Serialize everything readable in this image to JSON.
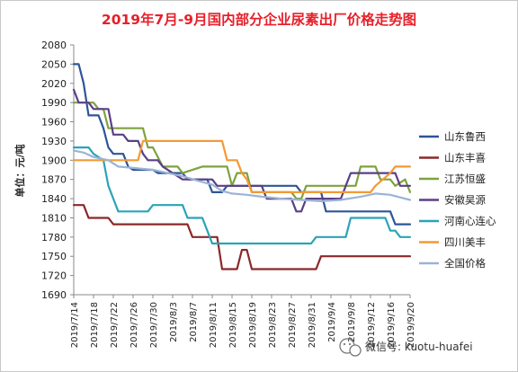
{
  "chart_data": {
    "type": "line",
    "title": "2019年7月-9月国内部分企业尿素出厂价格走势图",
    "title_color": "#e8202a",
    "ylabel": "单位：元/吨",
    "xlabel": "",
    "ylim": [
      1690,
      2080
    ],
    "yticks": [
      1690,
      1720,
      1750,
      1780,
      1810,
      1840,
      1870,
      1900,
      1930,
      1960,
      1990,
      2020,
      2050,
      2080
    ],
    "xlim": [
      "2019-07-14",
      "2019-09-20"
    ],
    "xtick_labels": [
      "2019/7/14",
      "2019/7/18",
      "2019/7/22",
      "2019/7/26",
      "2019/7/30",
      "2019/8/3",
      "2019/8/7",
      "2019/8/11",
      "2019/8/15",
      "2019/8/19",
      "2019/8/23",
      "2019/8/27",
      "2019/8/31",
      "2019/9/4",
      "2019/9/8",
      "2019/9/12",
      "2019/9/16",
      "2019/9/20"
    ],
    "grid": false,
    "legend_position": "right",
    "series": [
      {
        "name": "山东鲁西",
        "color": "#2e5597",
        "points": [
          [
            "2019-07-14",
            2050
          ],
          [
            "2019-07-15",
            2050
          ],
          [
            "2019-07-16",
            2020
          ],
          [
            "2019-07-17",
            1970
          ],
          [
            "2019-07-19",
            1970
          ],
          [
            "2019-07-20",
            1950
          ],
          [
            "2019-07-21",
            1920
          ],
          [
            "2019-07-22",
            1910
          ],
          [
            "2019-07-24",
            1910
          ],
          [
            "2019-07-25",
            1890
          ],
          [
            "2019-07-26",
            1885
          ],
          [
            "2019-07-30",
            1885
          ],
          [
            "2019-07-31",
            1880
          ],
          [
            "2019-08-05",
            1880
          ],
          [
            "2019-08-06",
            1870
          ],
          [
            "2019-08-10",
            1870
          ],
          [
            "2019-08-11",
            1850
          ],
          [
            "2019-08-13",
            1850
          ],
          [
            "2019-08-14",
            1860
          ],
          [
            "2019-08-28",
            1860
          ],
          [
            "2019-08-29",
            1850
          ],
          [
            "2019-09-02",
            1850
          ],
          [
            "2019-09-03",
            1820
          ],
          [
            "2019-09-16",
            1820
          ],
          [
            "2019-09-17",
            1800
          ],
          [
            "2019-09-20",
            1800
          ]
        ]
      },
      {
        "name": "山东丰喜",
        "color": "#8b2828",
        "points": [
          [
            "2019-07-14",
            1830
          ],
          [
            "2019-07-16",
            1830
          ],
          [
            "2019-07-17",
            1810
          ],
          [
            "2019-07-21",
            1810
          ],
          [
            "2019-07-22",
            1800
          ],
          [
            "2019-08-06",
            1800
          ],
          [
            "2019-08-07",
            1780
          ],
          [
            "2019-08-12",
            1780
          ],
          [
            "2019-08-13",
            1730
          ],
          [
            "2019-08-16",
            1730
          ],
          [
            "2019-08-17",
            1760
          ],
          [
            "2019-08-18",
            1760
          ],
          [
            "2019-08-19",
            1730
          ],
          [
            "2019-09-01",
            1730
          ],
          [
            "2019-09-02",
            1750
          ],
          [
            "2019-09-20",
            1750
          ]
        ]
      },
      {
        "name": "江苏恒盛",
        "color": "#7ea23e",
        "points": [
          [
            "2019-07-14",
            1990
          ],
          [
            "2019-07-18",
            1990
          ],
          [
            "2019-07-19",
            1980
          ],
          [
            "2019-07-20",
            1980
          ],
          [
            "2019-07-21",
            1950
          ],
          [
            "2019-07-28",
            1950
          ],
          [
            "2019-07-29",
            1920
          ],
          [
            "2019-07-30",
            1920
          ],
          [
            "2019-08-01",
            1890
          ],
          [
            "2019-08-04",
            1890
          ],
          [
            "2019-08-05",
            1880
          ],
          [
            "2019-08-09",
            1890
          ],
          [
            "2019-08-14",
            1890
          ],
          [
            "2019-08-15",
            1860
          ],
          [
            "2019-08-16",
            1880
          ],
          [
            "2019-08-18",
            1880
          ],
          [
            "2019-08-19",
            1850
          ],
          [
            "2019-08-27",
            1850
          ],
          [
            "2019-08-28",
            1840
          ],
          [
            "2019-08-29",
            1840
          ],
          [
            "2019-08-30",
            1860
          ],
          [
            "2019-09-09",
            1860
          ],
          [
            "2019-09-10",
            1890
          ],
          [
            "2019-09-13",
            1890
          ],
          [
            "2019-09-14",
            1870
          ],
          [
            "2019-09-16",
            1870
          ],
          [
            "2019-09-17",
            1860
          ],
          [
            "2019-09-19",
            1870
          ],
          [
            "2019-09-20",
            1850
          ]
        ]
      },
      {
        "name": "安徽昊源",
        "color": "#5b3f86",
        "points": [
          [
            "2019-07-14",
            2010
          ],
          [
            "2019-07-15",
            1990
          ],
          [
            "2019-07-17",
            1990
          ],
          [
            "2019-07-18",
            1980
          ],
          [
            "2019-07-21",
            1980
          ],
          [
            "2019-07-22",
            1940
          ],
          [
            "2019-07-24",
            1940
          ],
          [
            "2019-07-25",
            1930
          ],
          [
            "2019-07-27",
            1930
          ],
          [
            "2019-07-28",
            1910
          ],
          [
            "2019-07-29",
            1900
          ],
          [
            "2019-07-31",
            1900
          ],
          [
            "2019-08-01",
            1890
          ],
          [
            "2019-08-03",
            1880
          ],
          [
            "2019-08-05",
            1870
          ],
          [
            "2019-08-11",
            1870
          ],
          [
            "2019-08-12",
            1860
          ],
          [
            "2019-08-21",
            1860
          ],
          [
            "2019-08-22",
            1840
          ],
          [
            "2019-08-27",
            1840
          ],
          [
            "2019-08-28",
            1820
          ],
          [
            "2019-08-29",
            1820
          ],
          [
            "2019-08-30",
            1840
          ],
          [
            "2019-09-06",
            1840
          ],
          [
            "2019-09-07",
            1860
          ],
          [
            "2019-09-08",
            1880
          ],
          [
            "2019-09-17",
            1880
          ],
          [
            "2019-09-18",
            1860
          ],
          [
            "2019-09-20",
            1860
          ]
        ]
      },
      {
        "name": "河南心连心",
        "color": "#2ba3b8",
        "points": [
          [
            "2019-07-14",
            1920
          ],
          [
            "2019-07-17",
            1920
          ],
          [
            "2019-07-18",
            1910
          ],
          [
            "2019-07-20",
            1900
          ],
          [
            "2019-07-21",
            1860
          ],
          [
            "2019-07-22",
            1840
          ],
          [
            "2019-07-23",
            1820
          ],
          [
            "2019-07-29",
            1820
          ],
          [
            "2019-07-30",
            1830
          ],
          [
            "2019-08-05",
            1830
          ],
          [
            "2019-08-06",
            1810
          ],
          [
            "2019-08-09",
            1810
          ],
          [
            "2019-08-10",
            1790
          ],
          [
            "2019-08-11",
            1770
          ],
          [
            "2019-08-31",
            1770
          ],
          [
            "2019-09-01",
            1780
          ],
          [
            "2019-09-07",
            1780
          ],
          [
            "2019-09-08",
            1810
          ],
          [
            "2019-09-14",
            1810
          ],
          [
            "2019-09-15",
            1810
          ],
          [
            "2019-09-16",
            1790
          ],
          [
            "2019-09-17",
            1790
          ],
          [
            "2019-09-18",
            1780
          ],
          [
            "2019-09-20",
            1780
          ]
        ]
      },
      {
        "name": "四川美丰",
        "color": "#f39a34",
        "points": [
          [
            "2019-07-14",
            1900
          ],
          [
            "2019-07-27",
            1900
          ],
          [
            "2019-07-28",
            1930
          ],
          [
            "2019-08-13",
            1930
          ],
          [
            "2019-08-14",
            1900
          ],
          [
            "2019-08-16",
            1900
          ],
          [
            "2019-08-17",
            1880
          ],
          [
            "2019-08-18",
            1870
          ],
          [
            "2019-08-19",
            1850
          ],
          [
            "2019-09-12",
            1850
          ],
          [
            "2019-09-13",
            1860
          ],
          [
            "2019-09-16",
            1880
          ],
          [
            "2019-09-17",
            1890
          ],
          [
            "2019-09-20",
            1890
          ]
        ]
      },
      {
        "name": "全国价格",
        "color": "#9bb3d6",
        "points": [
          [
            "2019-07-14",
            1915
          ],
          [
            "2019-07-16",
            1912
          ],
          [
            "2019-07-18",
            1905
          ],
          [
            "2019-07-21",
            1900
          ],
          [
            "2019-07-23",
            1890
          ],
          [
            "2019-07-26",
            1888
          ],
          [
            "2019-07-30",
            1885
          ],
          [
            "2019-08-02",
            1880
          ],
          [
            "2019-08-05",
            1875
          ],
          [
            "2019-08-08",
            1868
          ],
          [
            "2019-08-11",
            1862
          ],
          [
            "2019-08-13",
            1852
          ],
          [
            "2019-08-15",
            1848
          ],
          [
            "2019-08-18",
            1846
          ],
          [
            "2019-08-21",
            1843
          ],
          [
            "2019-08-25",
            1840
          ],
          [
            "2019-08-29",
            1838
          ],
          [
            "2019-09-02",
            1836
          ],
          [
            "2019-09-06",
            1838
          ],
          [
            "2019-09-10",
            1843
          ],
          [
            "2019-09-13",
            1848
          ],
          [
            "2019-09-16",
            1846
          ],
          [
            "2019-09-18",
            1842
          ],
          [
            "2019-09-20",
            1838
          ]
        ]
      }
    ]
  },
  "watermark": {
    "text": "微信号: kuotu-huafei",
    "icon": "wechat-icon"
  }
}
